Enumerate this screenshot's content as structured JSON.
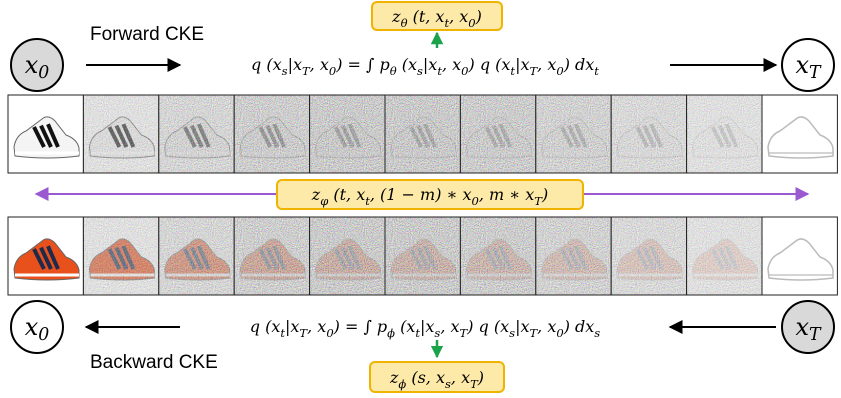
{
  "nodes": {
    "start": "x_0",
    "end": "x_T"
  },
  "top": {
    "label": "Forward CKE",
    "formula": "q (x_s|x_T, x_0) = ∫ p_θ (x_s|x_t, x_0) q (x_t|x_T, x_0) dx_t",
    "box": "z_θ (t, x_t, x_0)"
  },
  "middle": {
    "box": "z_φ (t, x_t, (1 − m) ∗ x_0, m ∗ x_T)"
  },
  "bottom": {
    "label": "Backward CKE",
    "formula": "q (x_t|x_T, x_0) = ∫ p_ϕ (x_t|x_s, x_T) q (x_s|x_T, x_0) dx_s",
    "box": "z_ϕ (s, x_s, x_T)"
  }
}
